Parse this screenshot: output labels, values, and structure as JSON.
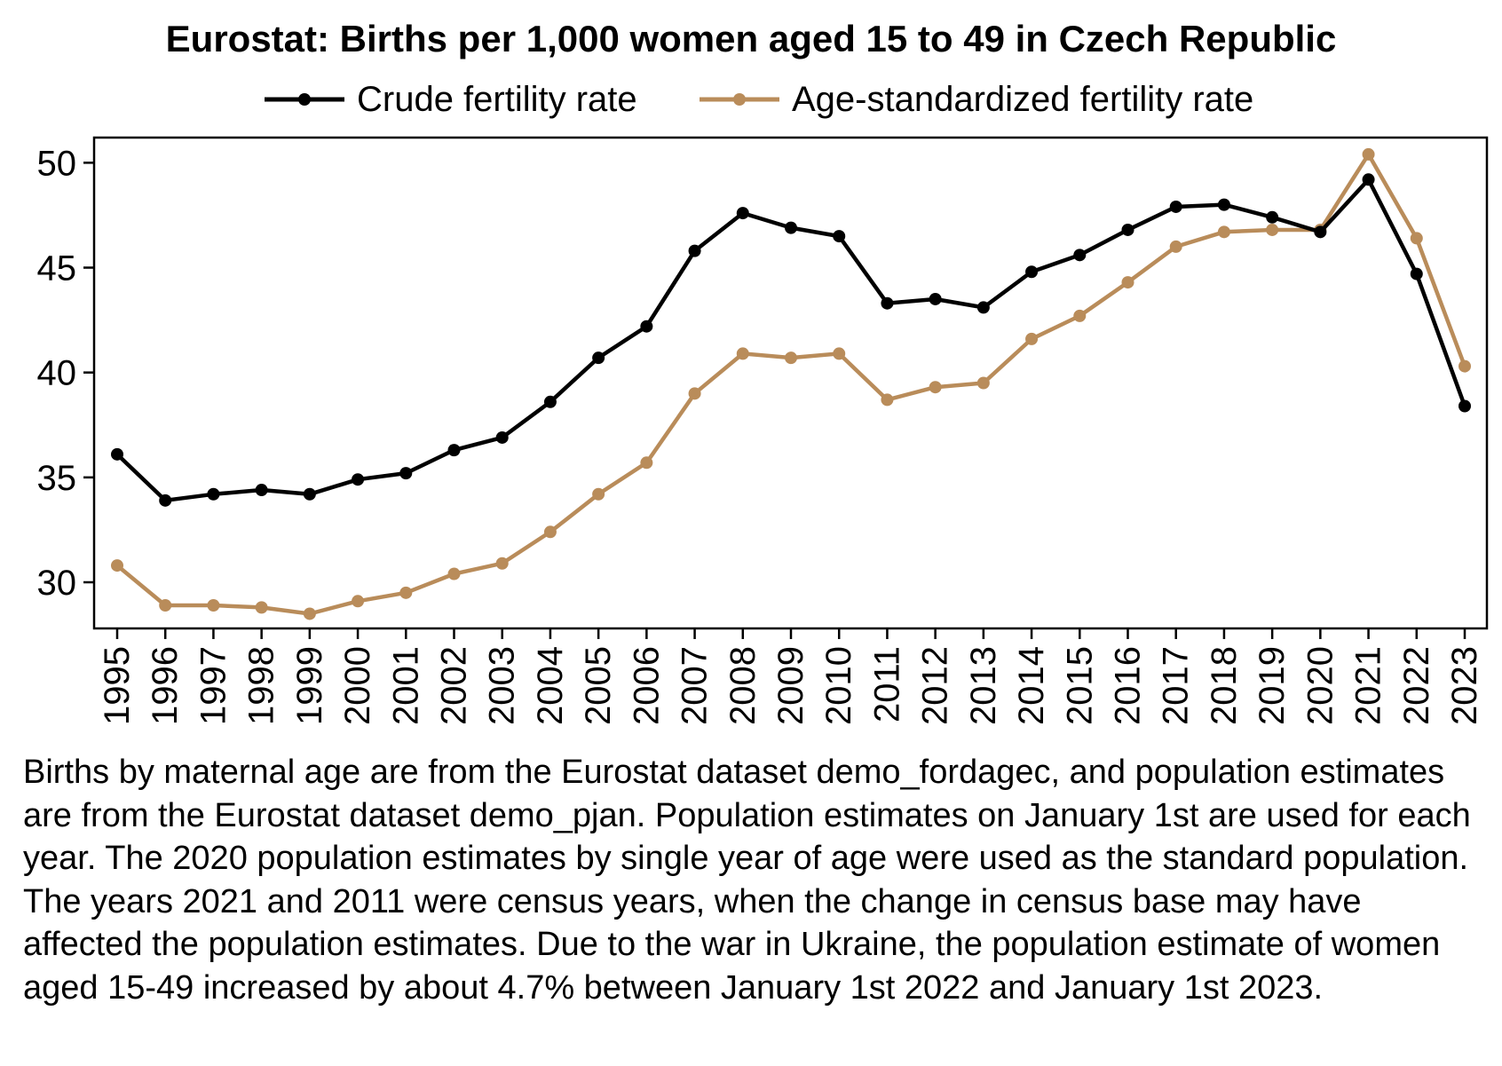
{
  "chart_data": {
    "type": "line",
    "title": "Eurostat: Births per 1,000 women aged 15 to 49 in Czech Republic",
    "xlabel": "",
    "ylabel": "",
    "x": [
      1995,
      1996,
      1997,
      1998,
      1999,
      2000,
      2001,
      2002,
      2003,
      2004,
      2005,
      2006,
      2007,
      2008,
      2009,
      2010,
      2011,
      2012,
      2013,
      2014,
      2015,
      2016,
      2017,
      2018,
      2019,
      2020,
      2021,
      2022,
      2023
    ],
    "ylim": [
      27.8,
      51.2
    ],
    "yticks": [
      30,
      35,
      40,
      45,
      50
    ],
    "grid": false,
    "legend_position": "top",
    "series": [
      {
        "name": "Crude fertility rate",
        "color": "#000000",
        "values": [
          36.1,
          33.9,
          34.2,
          34.4,
          34.2,
          34.9,
          35.2,
          36.3,
          36.9,
          38.6,
          40.7,
          42.2,
          45.8,
          47.6,
          46.9,
          46.5,
          43.3,
          43.5,
          43.1,
          44.8,
          45.6,
          46.8,
          47.9,
          48.0,
          47.4,
          46.7,
          49.2,
          44.7,
          38.4
        ]
      },
      {
        "name": "Age-standardized fertility rate",
        "color": "#b98c5a",
        "values": [
          30.8,
          28.9,
          28.9,
          28.8,
          28.5,
          29.1,
          29.5,
          30.4,
          30.9,
          32.4,
          34.2,
          35.7,
          39.0,
          40.9,
          40.7,
          40.9,
          38.7,
          39.3,
          39.5,
          41.6,
          42.7,
          44.3,
          46.0,
          46.7,
          46.8,
          46.8,
          50.4,
          46.4,
          40.3
        ]
      }
    ]
  },
  "footnote": "Births by maternal age are from the Eurostat dataset demo_fordagec, and population estimates are from the Eurostat dataset demo_pjan. Population estimates on January 1st are used for each year. The 2020 population estimates by single year of age were used as the standard population. The years 2021 and 2011 were census years, when the change in census base may have affected the population estimates. Due to the war in Ukraine, the population estimate of women aged 15-49 increased by about 4.7% between January 1st 2022 and January 1st 2023."
}
